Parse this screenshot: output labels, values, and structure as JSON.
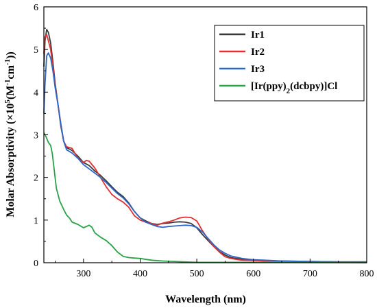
{
  "chart_data": {
    "type": "line",
    "xlabel": "Wavelength (nm)",
    "ylabel": {
      "prefix": "Molar Absorptivity (×10",
      "sup1": "5",
      "mid": "(M",
      "sup2": "-1",
      "mid2": "cm",
      "sup3": "-1",
      "suffix": "))"
    },
    "xlim": [
      230,
      800
    ],
    "ylim": [
      0,
      6
    ],
    "xticks": [
      300,
      400,
      500,
      600,
      700,
      800
    ],
    "yticks": [
      0,
      1,
      2,
      3,
      4,
      5,
      6
    ],
    "grid": false,
    "legend_position": "top-right",
    "series": [
      {
        "name": "Ir1",
        "color": "#3a3a3a",
        "points": [
          [
            230,
            4.6
          ],
          [
            232,
            5.2
          ],
          [
            235,
            5.47
          ],
          [
            238,
            5.4
          ],
          [
            242,
            5.15
          ],
          [
            246,
            4.7
          ],
          [
            250,
            4.2
          ],
          [
            255,
            3.7
          ],
          [
            260,
            3.2
          ],
          [
            265,
            2.85
          ],
          [
            270,
            2.7
          ],
          [
            280,
            2.63
          ],
          [
            290,
            2.5
          ],
          [
            300,
            2.35
          ],
          [
            310,
            2.28
          ],
          [
            320,
            2.15
          ],
          [
            330,
            2.05
          ],
          [
            340,
            1.92
          ],
          [
            350,
            1.78
          ],
          [
            360,
            1.65
          ],
          [
            370,
            1.55
          ],
          [
            380,
            1.4
          ],
          [
            390,
            1.2
          ],
          [
            400,
            1.05
          ],
          [
            410,
            0.98
          ],
          [
            420,
            0.92
          ],
          [
            430,
            0.9
          ],
          [
            440,
            0.92
          ],
          [
            450,
            0.93
          ],
          [
            460,
            0.95
          ],
          [
            470,
            0.96
          ],
          [
            480,
            0.95
          ],
          [
            490,
            0.92
          ],
          [
            500,
            0.82
          ],
          [
            510,
            0.66
          ],
          [
            520,
            0.52
          ],
          [
            530,
            0.38
          ],
          [
            540,
            0.26
          ],
          [
            550,
            0.18
          ],
          [
            560,
            0.12
          ],
          [
            580,
            0.08
          ],
          [
            600,
            0.07
          ],
          [
            620,
            0.05
          ],
          [
            650,
            0.04
          ],
          [
            700,
            0.03
          ],
          [
            750,
            0.02
          ],
          [
            800,
            0.02
          ]
        ]
      },
      {
        "name": "Ir2",
        "color": "#e03030",
        "points": [
          [
            230,
            4.9
          ],
          [
            232,
            5.3
          ],
          [
            235,
            5.35
          ],
          [
            238,
            5.2
          ],
          [
            242,
            5.0
          ],
          [
            246,
            4.6
          ],
          [
            250,
            4.15
          ],
          [
            255,
            3.7
          ],
          [
            260,
            3.25
          ],
          [
            265,
            2.85
          ],
          [
            270,
            2.72
          ],
          [
            280,
            2.68
          ],
          [
            290,
            2.45
          ],
          [
            300,
            2.35
          ],
          [
            305,
            2.4
          ],
          [
            310,
            2.38
          ],
          [
            320,
            2.22
          ],
          [
            330,
            2.0
          ],
          [
            340,
            1.78
          ],
          [
            350,
            1.6
          ],
          [
            360,
            1.5
          ],
          [
            370,
            1.42
          ],
          [
            380,
            1.3
          ],
          [
            390,
            1.1
          ],
          [
            400,
            1.0
          ],
          [
            410,
            0.95
          ],
          [
            420,
            0.92
          ],
          [
            430,
            0.88
          ],
          [
            440,
            0.93
          ],
          [
            450,
            0.96
          ],
          [
            460,
            1.0
          ],
          [
            470,
            1.05
          ],
          [
            480,
            1.07
          ],
          [
            490,
            1.06
          ],
          [
            500,
            0.98
          ],
          [
            510,
            0.75
          ],
          [
            520,
            0.55
          ],
          [
            530,
            0.38
          ],
          [
            540,
            0.25
          ],
          [
            550,
            0.14
          ],
          [
            560,
            0.1
          ],
          [
            580,
            0.06
          ],
          [
            600,
            0.05
          ],
          [
            620,
            0.04
          ],
          [
            650,
            0.04
          ],
          [
            700,
            0.02
          ],
          [
            750,
            0.01
          ],
          [
            800,
            0.01
          ]
        ]
      },
      {
        "name": "Ir3",
        "color": "#2e66c8",
        "points": [
          [
            230,
            3.5
          ],
          [
            232,
            4.2
          ],
          [
            235,
            4.85
          ],
          [
            238,
            4.92
          ],
          [
            242,
            4.8
          ],
          [
            246,
            4.5
          ],
          [
            250,
            4.1
          ],
          [
            255,
            3.7
          ],
          [
            260,
            3.25
          ],
          [
            265,
            2.85
          ],
          [
            270,
            2.65
          ],
          [
            280,
            2.57
          ],
          [
            290,
            2.45
          ],
          [
            300,
            2.3
          ],
          [
            310,
            2.2
          ],
          [
            320,
            2.1
          ],
          [
            330,
            2.0
          ],
          [
            340,
            1.88
          ],
          [
            350,
            1.75
          ],
          [
            360,
            1.62
          ],
          [
            370,
            1.52
          ],
          [
            380,
            1.38
          ],
          [
            390,
            1.2
          ],
          [
            400,
            1.05
          ],
          [
            410,
            0.95
          ],
          [
            420,
            0.9
          ],
          [
            430,
            0.85
          ],
          [
            440,
            0.83
          ],
          [
            450,
            0.85
          ],
          [
            460,
            0.86
          ],
          [
            470,
            0.87
          ],
          [
            480,
            0.88
          ],
          [
            490,
            0.87
          ],
          [
            500,
            0.83
          ],
          [
            510,
            0.72
          ],
          [
            520,
            0.57
          ],
          [
            530,
            0.42
          ],
          [
            540,
            0.3
          ],
          [
            550,
            0.22
          ],
          [
            560,
            0.16
          ],
          [
            580,
            0.1
          ],
          [
            600,
            0.07
          ],
          [
            620,
            0.06
          ],
          [
            650,
            0.04
          ],
          [
            700,
            0.03
          ],
          [
            750,
            0.02
          ],
          [
            800,
            0.02
          ]
        ]
      },
      {
        "name": "[Ir(ppy)2(dcbpy)]Cl",
        "label_parts": [
          "[Ir(ppy)",
          "2",
          "(dcbpy)]Cl"
        ],
        "color": "#2aa048",
        "points": [
          [
            230,
            3.05
          ],
          [
            234,
            2.95
          ],
          [
            238,
            2.82
          ],
          [
            242,
            2.75
          ],
          [
            245,
            2.55
          ],
          [
            248,
            2.2
          ],
          [
            252,
            1.75
          ],
          [
            258,
            1.45
          ],
          [
            265,
            1.25
          ],
          [
            270,
            1.12
          ],
          [
            275,
            1.05
          ],
          [
            280,
            0.95
          ],
          [
            290,
            0.9
          ],
          [
            300,
            0.82
          ],
          [
            305,
            0.85
          ],
          [
            310,
            0.88
          ],
          [
            315,
            0.83
          ],
          [
            320,
            0.7
          ],
          [
            330,
            0.6
          ],
          [
            340,
            0.52
          ],
          [
            350,
            0.4
          ],
          [
            360,
            0.25
          ],
          [
            370,
            0.15
          ],
          [
            380,
            0.12
          ],
          [
            390,
            0.11
          ],
          [
            400,
            0.1
          ],
          [
            420,
            0.06
          ],
          [
            440,
            0.04
          ],
          [
            460,
            0.03
          ],
          [
            480,
            0.02
          ],
          [
            500,
            0.01
          ],
          [
            600,
            0.01
          ],
          [
            800,
            0.0
          ]
        ]
      }
    ]
  }
}
